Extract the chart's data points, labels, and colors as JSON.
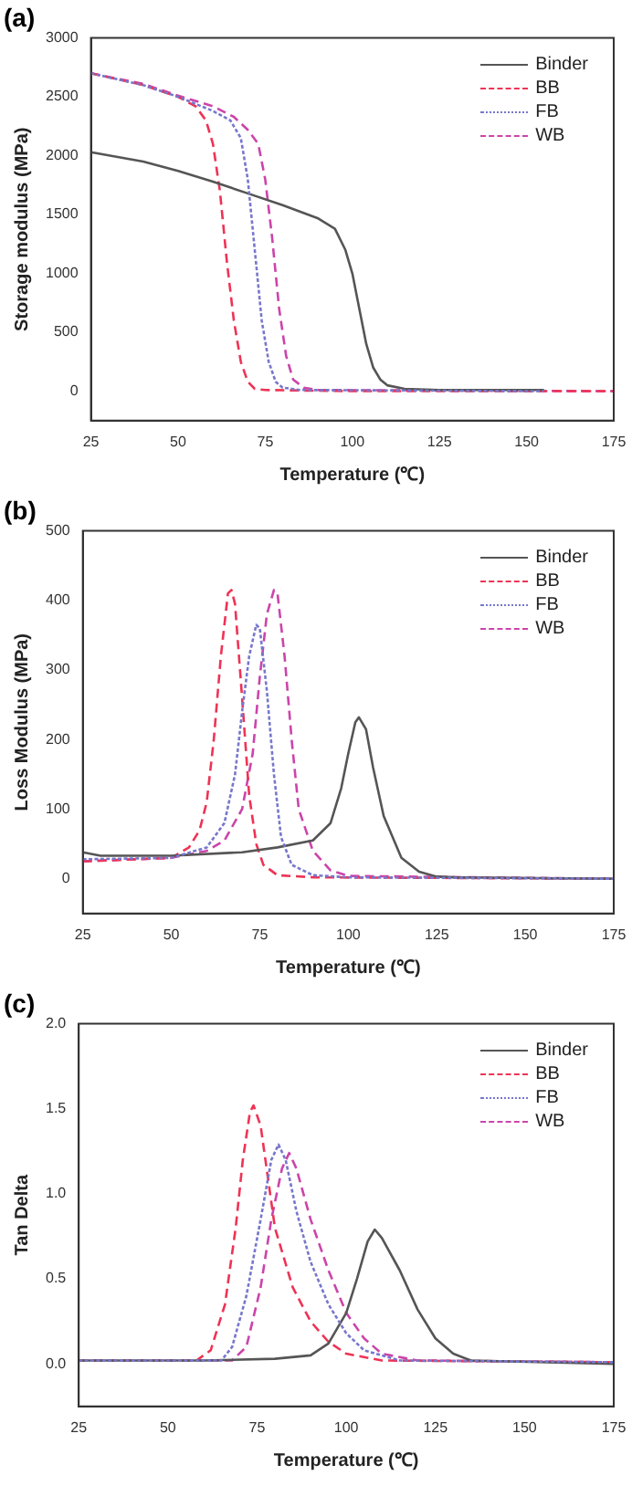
{
  "chart_data": [
    {
      "type": "line",
      "title": "(a)",
      "xlabel": "Temperature (℃)",
      "ylabel": "Storage modulus (MPa)",
      "xlim": [
        25,
        175
      ],
      "xticks": [
        25,
        50,
        75,
        100,
        125,
        150,
        175
      ],
      "ylim": [
        -250,
        3000
      ],
      "yticks": [
        0,
        500,
        1000,
        1500,
        2000,
        2500,
        3000
      ],
      "grid": false,
      "legend": "top right",
      "marker": "none",
      "series": [
        {
          "name": "Binder",
          "color": "#555555",
          "line_style": "solid",
          "x": [
            25,
            40,
            50,
            60,
            70,
            80,
            90,
            95,
            98,
            100,
            102,
            104,
            106,
            108,
            110,
            115,
            125,
            155
          ],
          "values": [
            2030,
            1950,
            1870,
            1780,
            1680,
            1580,
            1470,
            1380,
            1200,
            1000,
            700,
            400,
            200,
            100,
            50,
            20,
            10,
            10
          ]
        },
        {
          "name": "BB",
          "color": "#ee3355",
          "line_style": "dashed",
          "x": [
            25,
            40,
            50,
            55,
            58,
            60,
            62,
            64,
            66,
            68,
            70,
            72,
            75,
            100,
            175
          ],
          "values": [
            2700,
            2600,
            2500,
            2420,
            2300,
            2100,
            1700,
            1100,
            600,
            250,
            80,
            20,
            10,
            0,
            0
          ]
        },
        {
          "name": "FB",
          "color": "#7777cc",
          "line_style": "dotted",
          "x": [
            25,
            40,
            50,
            60,
            65,
            68,
            70,
            72,
            74,
            76,
            78,
            80,
            85,
            155
          ],
          "values": [
            2700,
            2600,
            2500,
            2380,
            2300,
            2150,
            1800,
            1200,
            600,
            250,
            80,
            30,
            10,
            0
          ]
        },
        {
          "name": "WB",
          "color": "#cc44aa",
          "line_style": "dashed",
          "x": [
            25,
            40,
            50,
            60,
            66,
            70,
            73,
            75,
            77,
            79,
            81,
            83,
            86,
            90,
            175
          ],
          "values": [
            2700,
            2610,
            2510,
            2420,
            2330,
            2220,
            2100,
            1800,
            1300,
            700,
            300,
            100,
            30,
            10,
            0
          ]
        }
      ]
    },
    {
      "type": "line",
      "title": "(b)",
      "xlabel": "Temperature (℃)",
      "ylabel": "Loss Modulus (MPa)",
      "xlim": [
        25,
        175
      ],
      "xticks": [
        25,
        50,
        75,
        100,
        125,
        150,
        175
      ],
      "ylim": [
        -50,
        500
      ],
      "yticks": [
        0,
        100,
        200,
        300,
        400,
        500
      ],
      "grid": false,
      "legend": "top right",
      "marker": "none",
      "series": [
        {
          "name": "Binder",
          "color": "#555555",
          "line_style": "solid",
          "x": [
            25,
            30,
            50,
            70,
            80,
            90,
            95,
            98,
            100,
            102,
            103,
            105,
            107,
            110,
            115,
            120,
            125,
            130,
            175
          ],
          "values": [
            38,
            33,
            33,
            38,
            45,
            55,
            80,
            130,
            180,
            225,
            232,
            215,
            160,
            90,
            30,
            10,
            3,
            2,
            0
          ]
        },
        {
          "name": "BB",
          "color": "#ee3355",
          "line_style": "dashed",
          "x": [
            25,
            50,
            55,
            58,
            60,
            62,
            64,
            66,
            67,
            68,
            70,
            72,
            74,
            76,
            80,
            90,
            175
          ],
          "values": [
            25,
            30,
            45,
            70,
            110,
            200,
            320,
            410,
            415,
            395,
            260,
            120,
            50,
            20,
            5,
            2,
            0
          ]
        },
        {
          "name": "FB",
          "color": "#7777cc",
          "line_style": "dotted",
          "x": [
            25,
            50,
            60,
            65,
            68,
            70,
            72,
            74,
            75,
            77,
            79,
            81,
            84,
            90,
            100,
            175
          ],
          "values": [
            28,
            30,
            45,
            80,
            150,
            240,
            320,
            365,
            360,
            270,
            150,
            60,
            20,
            5,
            2,
            0
          ]
        },
        {
          "name": "WB",
          "color": "#cc44aa",
          "line_style": "dashed",
          "x": [
            25,
            50,
            60,
            65,
            70,
            73,
            75,
            77,
            79,
            80,
            82,
            84,
            86,
            90,
            95,
            100,
            175
          ],
          "values": [
            25,
            30,
            40,
            55,
            100,
            180,
            290,
            380,
            415,
            410,
            320,
            200,
            100,
            40,
            12,
            4,
            0
          ]
        }
      ]
    },
    {
      "type": "line",
      "title": "(c)",
      "xlabel": "Temperature (℃)",
      "ylabel": "Tan Delta",
      "xlim": [
        25,
        175
      ],
      "xticks": [
        25,
        50,
        75,
        100,
        125,
        150,
        175
      ],
      "ylim": [
        -0.25,
        2.0
      ],
      "yticks": [
        {
          "value": 0,
          "label": "0.0"
        },
        0.5,
        {
          "value": 1,
          "label": "1.0"
        },
        1.5,
        {
          "value": 2,
          "label": "2.0"
        }
      ],
      "grid": false,
      "legend": "top right",
      "marker": "none",
      "series": [
        {
          "name": "Binder",
          "color": "#555555",
          "line_style": "solid",
          "x": [
            25,
            60,
            80,
            90,
            95,
            100,
            103,
            106,
            108,
            110,
            115,
            120,
            125,
            130,
            135,
            175
          ],
          "values": [
            0.02,
            0.02,
            0.03,
            0.05,
            0.12,
            0.3,
            0.5,
            0.72,
            0.79,
            0.74,
            0.55,
            0.32,
            0.15,
            0.06,
            0.02,
            0.0
          ]
        },
        {
          "name": "BB",
          "color": "#ee3355",
          "line_style": "dashed",
          "x": [
            25,
            58,
            62,
            66,
            69,
            71,
            73,
            74,
            76,
            78,
            80,
            85,
            90,
            95,
            100,
            110,
            175
          ],
          "values": [
            0.02,
            0.02,
            0.08,
            0.35,
            0.8,
            1.2,
            1.48,
            1.52,
            1.4,
            1.1,
            0.8,
            0.45,
            0.25,
            0.13,
            0.06,
            0.02,
            0.01
          ]
        },
        {
          "name": "FB",
          "color": "#7777cc",
          "line_style": "dotted",
          "x": [
            25,
            65,
            68,
            72,
            76,
            79,
            81,
            83,
            86,
            90,
            95,
            100,
            105,
            115,
            175
          ],
          "values": [
            0.02,
            0.02,
            0.1,
            0.4,
            0.85,
            1.2,
            1.29,
            1.2,
            0.9,
            0.6,
            0.35,
            0.18,
            0.08,
            0.02,
            0.01
          ]
        },
        {
          "name": "WB",
          "color": "#cc44aa",
          "line_style": "dashed",
          "x": [
            25,
            68,
            72,
            76,
            79,
            82,
            84,
            86,
            90,
            95,
            100,
            105,
            110,
            120,
            175
          ],
          "values": [
            0.02,
            0.02,
            0.1,
            0.45,
            0.85,
            1.15,
            1.24,
            1.15,
            0.85,
            0.55,
            0.3,
            0.15,
            0.06,
            0.02,
            0.01
          ]
        }
      ]
    }
  ]
}
